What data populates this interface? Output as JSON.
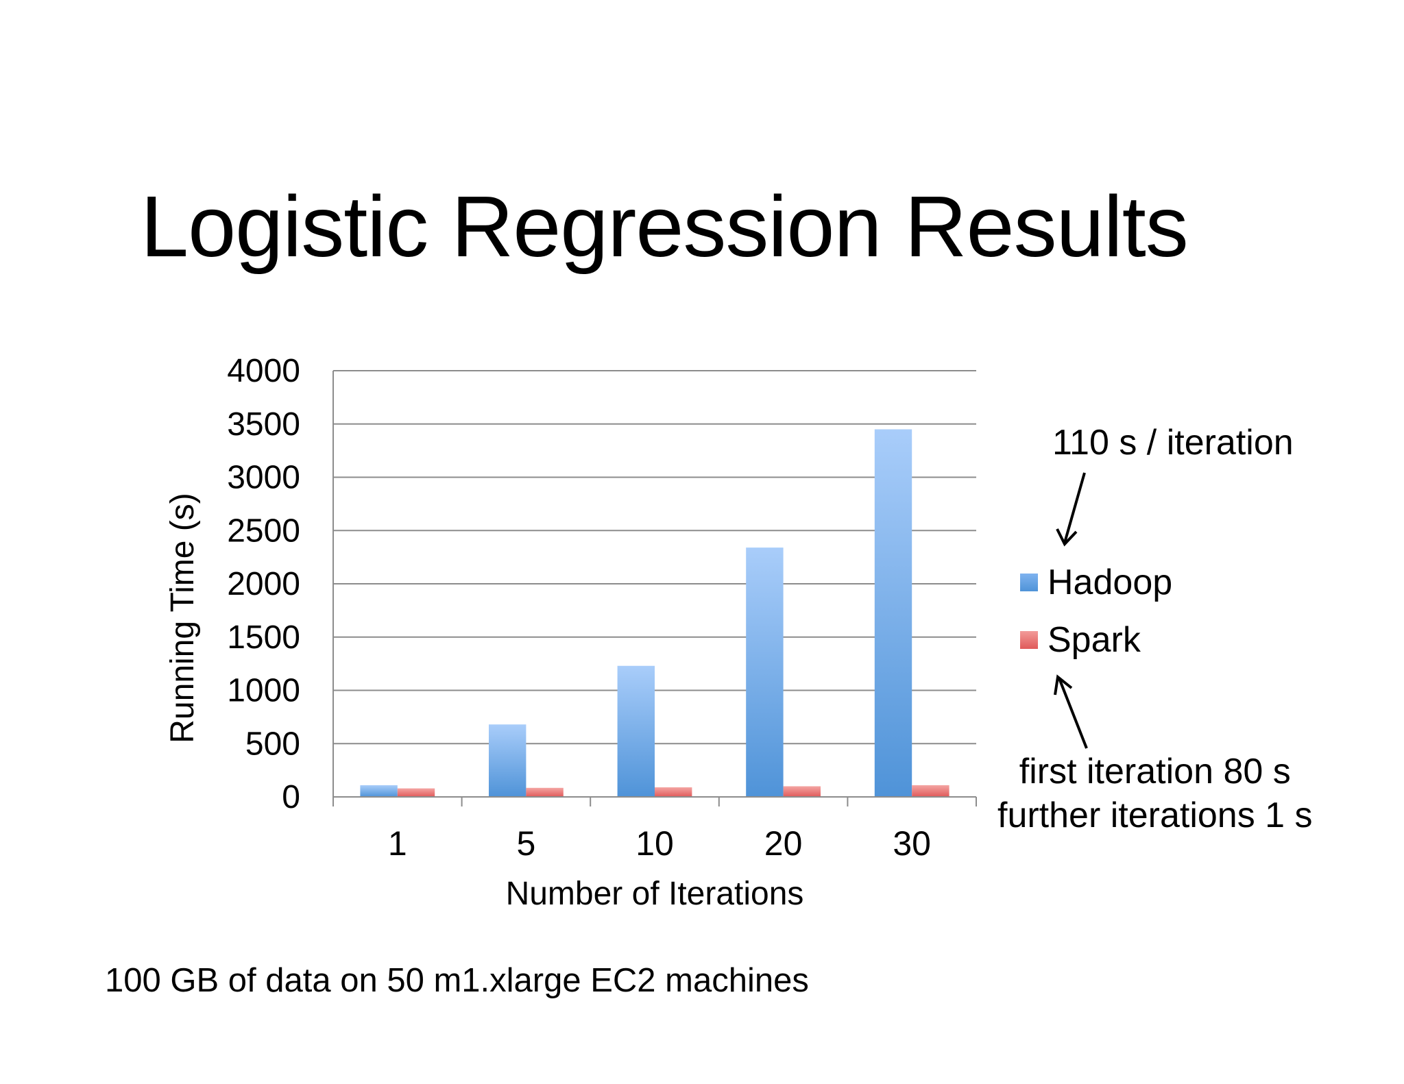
{
  "slide": {
    "title": "Logistic Regression Results",
    "footnote": "100 GB of data on 50 m1.xlarge EC2 machines"
  },
  "annotations": {
    "hadoop_note": "110 s / iteration",
    "spark_note_line1": "first iteration 80 s",
    "spark_note_line2": "further iterations 1 s"
  },
  "chart_data": {
    "type": "bar",
    "title": "",
    "xlabel": "Number of Iterations",
    "ylabel": "Running Time (s)",
    "categories": [
      "1",
      "5",
      "10",
      "20",
      "30"
    ],
    "ylim": [
      0,
      4000
    ],
    "yticks": [
      0,
      500,
      1000,
      1500,
      2000,
      2500,
      3000,
      3500,
      4000
    ],
    "grid": true,
    "legend_position": "right",
    "series": [
      {
        "name": "Hadoop",
        "values": [
          110,
          680,
          1230,
          2340,
          3450
        ],
        "color": "#5b9bdc"
      },
      {
        "name": "Spark",
        "values": [
          80,
          85,
          90,
          100,
          110
        ],
        "color": "#e66b6b"
      }
    ]
  }
}
